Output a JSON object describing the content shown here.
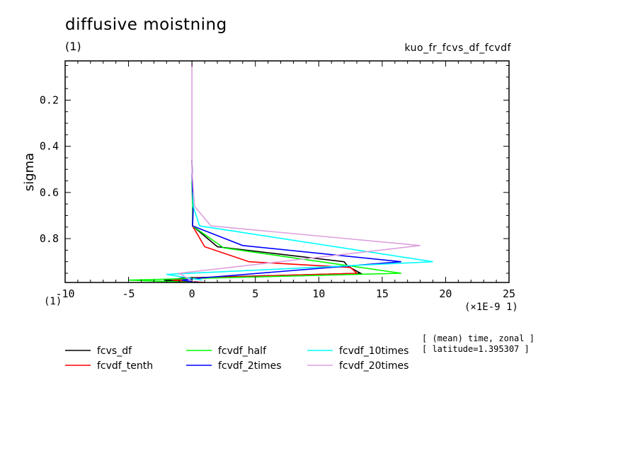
{
  "chart_data": {
    "type": "line",
    "title": "diffusive moistning",
    "title_unit": "(1)",
    "experiment_id": "kuo_fr_fcvs_df_fcvdf",
    "xlabel_unit": "(1)",
    "x_scale_label": "(×1E-9 1)",
    "ylabel": "sigma",
    "xlim": [
      -10,
      25
    ],
    "ylim": [
      0.99,
      0.03
    ],
    "x_ticks": [
      "-10",
      "-5",
      "0",
      "5",
      "10",
      "15",
      "20",
      "25"
    ],
    "y_ticks": [
      "0.2",
      "0.4",
      "0.6",
      "0.8"
    ],
    "meta_lines": [
      "[ (mean) time, zonal ]",
      "[ latitude=1.395307 ]"
    ],
    "grid": false,
    "legend_position": "bottom",
    "series": [
      {
        "name": "fcvs_df",
        "color": "#000000",
        "points": [
          [
            0,
            0.46
          ],
          [
            0.05,
            0.6
          ],
          [
            0.1,
            0.66
          ],
          [
            0.05,
            0.745
          ],
          [
            2,
            0.835
          ],
          [
            12,
            0.9
          ],
          [
            12.3,
            0.92
          ],
          [
            13.3,
            0.95
          ],
          [
            -0.5,
            0.97
          ],
          [
            -2.2,
            0.98
          ],
          [
            0.2,
            0.99
          ]
        ]
      },
      {
        "name": "fcvdf_tenth",
        "color": "#ff0000",
        "points": [
          [
            0.05,
            0.66
          ],
          [
            0.05,
            0.745
          ],
          [
            1,
            0.835
          ],
          [
            4.5,
            0.9
          ],
          [
            12.5,
            0.925
          ],
          [
            13,
            0.95
          ],
          [
            0.5,
            0.97
          ],
          [
            -1.5,
            0.98
          ],
          [
            1,
            0.99
          ]
        ]
      },
      {
        "name": "fcvdf_half",
        "color": "#00ff00",
        "points": [
          [
            0,
            0.55
          ],
          [
            0.05,
            0.66
          ],
          [
            0.05,
            0.745
          ],
          [
            2.5,
            0.84
          ],
          [
            16.5,
            0.95
          ],
          [
            -5,
            0.98
          ],
          [
            0.5,
            0.99
          ]
        ]
      },
      {
        "name": "fcvdf_2times",
        "color": "#0000ff",
        "points": [
          [
            0,
            0.46
          ],
          [
            0.05,
            0.6
          ],
          [
            0.1,
            0.66
          ],
          [
            0.05,
            0.745
          ],
          [
            4,
            0.83
          ],
          [
            16.5,
            0.9
          ],
          [
            0.8,
            0.97
          ],
          [
            -0.8,
            0.98
          ],
          [
            0.5,
            0.99
          ]
        ]
      },
      {
        "name": "fcvdf_10times",
        "color": "#00ffff",
        "points": [
          [
            0.1,
            0.6
          ],
          [
            0.1,
            0.66
          ],
          [
            0.6,
            0.745
          ],
          [
            19,
            0.9
          ],
          [
            -2,
            0.955
          ],
          [
            0.8,
            0.98
          ]
        ]
      },
      {
        "name": "fcvdf_20times",
        "color": "#dda0dd",
        "points": [
          [
            0,
            0.03
          ],
          [
            0,
            0.3
          ],
          [
            0,
            0.5
          ],
          [
            0.2,
            0.66
          ],
          [
            1.5,
            0.745
          ],
          [
            18,
            0.83
          ],
          [
            -1,
            0.95
          ],
          [
            0.2,
            0.99
          ]
        ]
      }
    ]
  }
}
